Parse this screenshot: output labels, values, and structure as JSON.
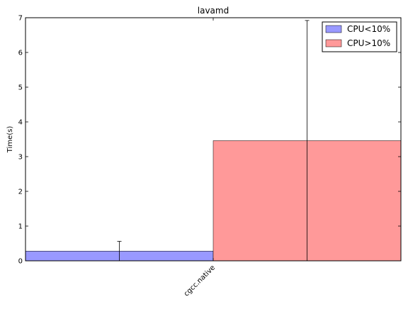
{
  "chart_data": {
    "type": "bar",
    "title": "lavamd",
    "xlabel": "",
    "ylabel": "Time(s)",
    "ylim": [
      0,
      7
    ],
    "yticks": [
      0,
      1,
      2,
      3,
      4,
      5,
      6,
      7
    ],
    "categories": [
      "cgcc.native"
    ],
    "legend_position": "top-right",
    "grid": false,
    "series": [
      {
        "name": "CPU<10%",
        "color": "#9999ff",
        "values": [
          0.28
        ],
        "error": [
          0.28
        ]
      },
      {
        "name": "CPU>10%",
        "color": "#ff9999",
        "values": [
          3.46
        ],
        "error": [
          3.46
        ]
      }
    ]
  }
}
